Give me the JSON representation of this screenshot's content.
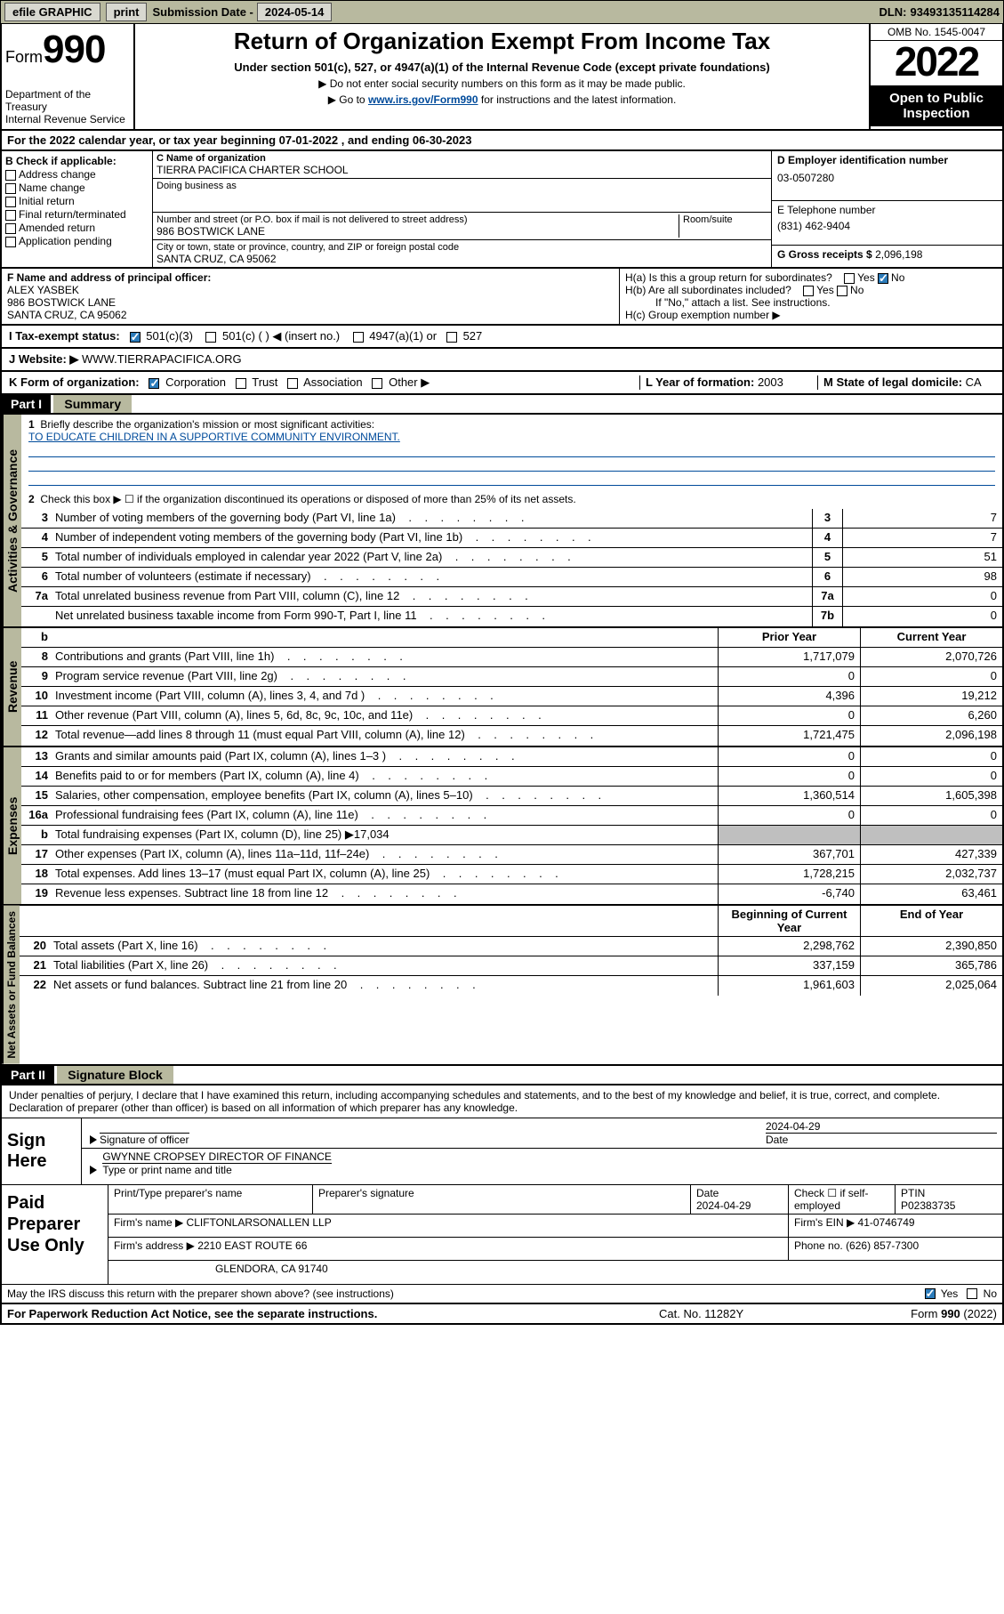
{
  "topbar": {
    "efile": "efile GRAPHIC",
    "print": "print",
    "subdate_label": "Submission Date - ",
    "subdate": "2024-05-14",
    "dln_label": "DLN: ",
    "dln": "93493135114284"
  },
  "head": {
    "form_label": "Form",
    "form_num": "990",
    "dept": "Department of the Treasury\nInternal Revenue Service",
    "title": "Return of Organization Exempt From Income Tax",
    "sub": "Under section 501(c), 527, or 4947(a)(1) of the Internal Revenue Code (except private foundations)",
    "note1": "▶ Do not enter social security numbers on this form as it may be made public.",
    "note2_pre": "▶ Go to ",
    "note2_link": "www.irs.gov/Form990",
    "note2_post": " for instructions and the latest information.",
    "omb": "OMB No. 1545-0047",
    "year": "2022",
    "open": "Open to Public Inspection"
  },
  "A": {
    "text": "For the 2022 calendar year, or tax year beginning ",
    "begin": "07-01-2022",
    "mid": "  , and ending ",
    "end": "06-30-2023"
  },
  "B": {
    "label": "B Check if applicable:",
    "items": [
      "Address change",
      "Name change",
      "Initial return",
      "Final return/terminated",
      "Amended return",
      "Application pending"
    ]
  },
  "C": {
    "name_label": "C Name of organization",
    "name": "TIERRA PACIFICA CHARTER SCHOOL",
    "dba_label": "Doing business as",
    "addr_label": "Number and street (or P.O. box if mail is not delivered to street address)",
    "room_label": "Room/suite",
    "addr": "986 BOSTWICK LANE",
    "city_label": "City or town, state or province, country, and ZIP or foreign postal code",
    "city": "SANTA CRUZ, CA  95062"
  },
  "D": {
    "label": "D Employer identification number",
    "val": "03-0507280"
  },
  "E": {
    "label": "E Telephone number",
    "val": "(831) 462-9404"
  },
  "G": {
    "label": "G Gross receipts $ ",
    "val": "2,096,198"
  },
  "F": {
    "label": "F  Name and address of principal officer:",
    "name": "ALEX YASBEK",
    "addr1": "986 BOSTWICK LANE",
    "addr2": "SANTA CRUZ, CA  95062"
  },
  "H": {
    "a": "H(a)  Is this a group return for subordinates?",
    "b": "H(b)  Are all subordinates included?",
    "b_note": "If \"No,\" attach a list. See instructions.",
    "c": "H(c)  Group exemption number ▶"
  },
  "I": {
    "label": "I   Tax-exempt status:",
    "opts": [
      "501(c)(3)",
      "501(c) (  ) ◀ (insert no.)",
      "4947(a)(1) or",
      "527"
    ]
  },
  "J": {
    "label": "J   Website: ▶  ",
    "val": "WWW.TIERRAPACIFICA.ORG"
  },
  "K": {
    "label": "K Form of organization:",
    "opts": [
      "Corporation",
      "Trust",
      "Association",
      "Other ▶"
    ]
  },
  "L": {
    "label": "L Year of formation: ",
    "val": "2003"
  },
  "M": {
    "label": "M State of legal domicile: ",
    "val": "CA"
  },
  "part1": {
    "bar": "Part I",
    "label": "Summary"
  },
  "summary": {
    "q1": "Briefly describe the organization's mission or most significant activities:",
    "mission": "TO EDUCATE CHILDREN IN A SUPPORTIVE COMMUNITY ENVIRONMENT.",
    "q2": "Check this box ▶ ☐  if the organization discontinued its operations or disposed of more than 25% of its net assets.",
    "lines_gov": [
      {
        "n": "3",
        "d": "Number of voting members of the governing body (Part VI, line 1a)",
        "box": "3",
        "v": "7"
      },
      {
        "n": "4",
        "d": "Number of independent voting members of the governing body (Part VI, line 1b)",
        "box": "4",
        "v": "7"
      },
      {
        "n": "5",
        "d": "Total number of individuals employed in calendar year 2022 (Part V, line 2a)",
        "box": "5",
        "v": "51"
      },
      {
        "n": "6",
        "d": "Total number of volunteers (estimate if necessary)",
        "box": "6",
        "v": "98"
      },
      {
        "n": "7a",
        "d": "Total unrelated business revenue from Part VIII, column (C), line 12",
        "box": "7a",
        "v": "0"
      },
      {
        "n": "",
        "d": "Net unrelated business taxable income from Form 990-T, Part I, line 11",
        "box": "7b",
        "v": "0"
      }
    ],
    "hdr_prior": "Prior Year",
    "hdr_curr": "Current Year",
    "rev": [
      {
        "n": "8",
        "d": "Contributions and grants (Part VIII, line 1h)",
        "p": "1,717,079",
        "c": "2,070,726"
      },
      {
        "n": "9",
        "d": "Program service revenue (Part VIII, line 2g)",
        "p": "0",
        "c": "0"
      },
      {
        "n": "10",
        "d": "Investment income (Part VIII, column (A), lines 3, 4, and 7d )",
        "p": "4,396",
        "c": "19,212"
      },
      {
        "n": "11",
        "d": "Other revenue (Part VIII, column (A), lines 5, 6d, 8c, 9c, 10c, and 11e)",
        "p": "0",
        "c": "6,260"
      },
      {
        "n": "12",
        "d": "Total revenue—add lines 8 through 11 (must equal Part VIII, column (A), line 12)",
        "p": "1,721,475",
        "c": "2,096,198"
      }
    ],
    "exp": [
      {
        "n": "13",
        "d": "Grants and similar amounts paid (Part IX, column (A), lines 1–3 )",
        "p": "0",
        "c": "0"
      },
      {
        "n": "14",
        "d": "Benefits paid to or for members (Part IX, column (A), line 4)",
        "p": "0",
        "c": "0"
      },
      {
        "n": "15",
        "d": "Salaries, other compensation, employee benefits (Part IX, column (A), lines 5–10)",
        "p": "1,360,514",
        "c": "1,605,398"
      },
      {
        "n": "16a",
        "d": "Professional fundraising fees (Part IX, column (A), line 11e)",
        "p": "0",
        "c": "0"
      },
      {
        "n": "b",
        "d": "Total fundraising expenses (Part IX, column (D), line 25) ▶17,034",
        "shade": true
      },
      {
        "n": "17",
        "d": "Other expenses (Part IX, column (A), lines 11a–11d, 11f–24e)",
        "p": "367,701",
        "c": "427,339"
      },
      {
        "n": "18",
        "d": "Total expenses. Add lines 13–17 (must equal Part IX, column (A), line 25)",
        "p": "1,728,215",
        "c": "2,032,737"
      },
      {
        "n": "19",
        "d": "Revenue less expenses. Subtract line 18 from line 12",
        "p": "-6,740",
        "c": "63,461"
      }
    ],
    "hdr_beg": "Beginning of Current Year",
    "hdr_end": "End of Year",
    "net": [
      {
        "n": "20",
        "d": "Total assets (Part X, line 16)",
        "p": "2,298,762",
        "c": "2,390,850"
      },
      {
        "n": "21",
        "d": "Total liabilities (Part X, line 26)",
        "p": "337,159",
        "c": "365,786"
      },
      {
        "n": "22",
        "d": "Net assets or fund balances. Subtract line 21 from line 20",
        "p": "1,961,603",
        "c": "2,025,064"
      }
    ],
    "tabs": {
      "gov": "Activities & Governance",
      "rev": "Revenue",
      "exp": "Expenses",
      "net": "Net Assets or Fund Balances"
    }
  },
  "part2": {
    "bar": "Part II",
    "label": "Signature Block"
  },
  "sig": {
    "decl": "Under penalties of perjury, I declare that I have examined this return, including accompanying schedules and statements, and to the best of my knowledge and belief, it is true, correct, and complete. Declaration of preparer (other than officer) is based on all information of which preparer has any knowledge.",
    "sign_here": "Sign Here",
    "sig_officer": "Signature of officer",
    "date": "2024-04-29",
    "date_lbl": "Date",
    "officer_name": "GWYNNE CROPSEY DIRECTOR OF FINANCE",
    "type_name": "Type or print name and title",
    "paid": "Paid Preparer Use Only",
    "prep_name_lbl": "Print/Type preparer's name",
    "prep_sig_lbl": "Preparer's signature",
    "prep_date_lbl": "Date",
    "prep_date": "2024-04-29",
    "check_if": "Check ☐ if self-employed",
    "ptin_lbl": "PTIN",
    "ptin": "P02383735",
    "firm_name_lbl": "Firm's name    ▶ ",
    "firm_name": "CLIFTONLARSONALLEN LLP",
    "firm_ein_lbl": "Firm's EIN ▶ ",
    "firm_ein": "41-0746749",
    "firm_addr_lbl": "Firm's address ▶ ",
    "firm_addr": "2210 EAST ROUTE 66",
    "firm_addr2": "GLENDORA, CA  91740",
    "phone_lbl": "Phone no. ",
    "phone": "(626) 857-7300",
    "discuss": "May the IRS discuss this return with the preparer shown above? (see instructions)",
    "yes": "Yes",
    "no": "No"
  },
  "footer": {
    "left": "For Paperwork Reduction Act Notice, see the separate instructions.",
    "mid": "Cat. No. 11282Y",
    "right": "Form 990 (2022)"
  }
}
